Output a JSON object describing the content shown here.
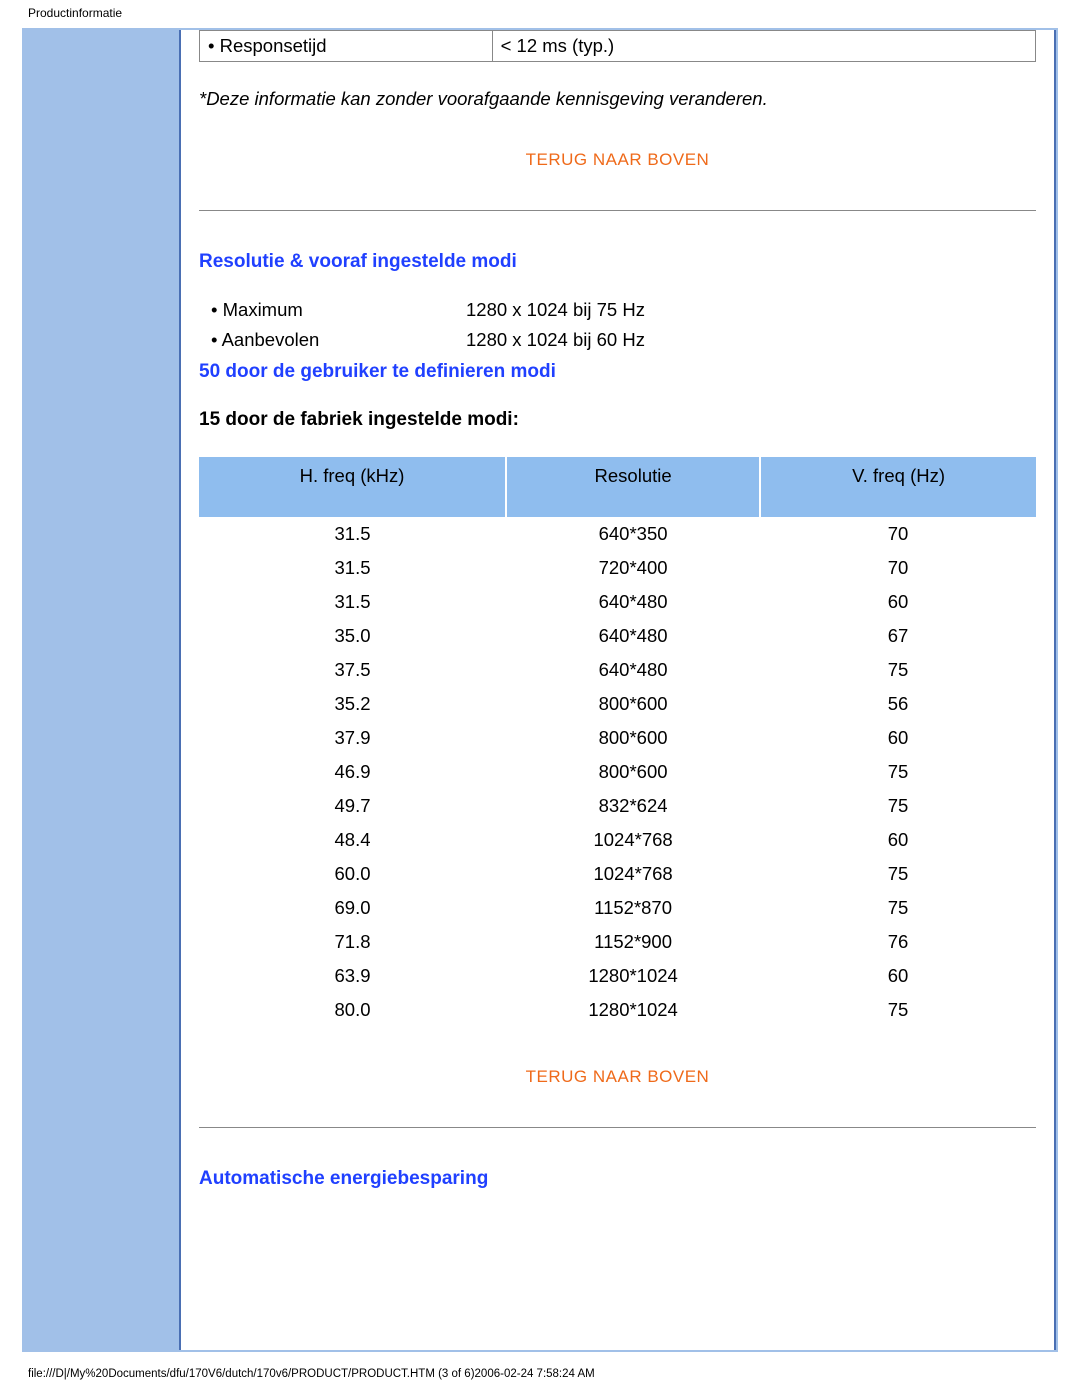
{
  "page_title_header": "Productinformatie",
  "spec_row": {
    "label": "• Responsetijd",
    "value": "< 12 ms (typ.)"
  },
  "disclaimer": "*Deze informatie kan zonder voorafgaande kennisgeving veranderen.",
  "back_to_top": "TERUG NAAR BOVEN",
  "resolution": {
    "heading": "Resolutie & vooraf ingestelde modi",
    "rows": [
      {
        "label": "• Maximum",
        "value": "1280 x 1024 bij 75 Hz"
      },
      {
        "label": "• Aanbevolen",
        "value": "1280 x 1024 bij 60 Hz"
      }
    ],
    "user_modes": "50 door de gebruiker te definieren modi",
    "factory_modes": "15 door de fabriek ingestelde modi:"
  },
  "modes_table": {
    "columns": [
      "H. freq (kHz)",
      "Resolutie",
      "V. freq (Hz)"
    ],
    "rows": [
      [
        "31.5",
        "640*350",
        "70"
      ],
      [
        "31.5",
        "720*400",
        "70"
      ],
      [
        "31.5",
        "640*480",
        "60"
      ],
      [
        "35.0",
        "640*480",
        "67"
      ],
      [
        "37.5",
        "640*480",
        "75"
      ],
      [
        "35.2",
        "800*600",
        "56"
      ],
      [
        "37.9",
        "800*600",
        "60"
      ],
      [
        "46.9",
        "800*600",
        "75"
      ],
      [
        "49.7",
        "832*624",
        "75"
      ],
      [
        "48.4",
        "1024*768",
        "60"
      ],
      [
        "60.0",
        "1024*768",
        "75"
      ],
      [
        "69.0",
        "1152*870",
        "75"
      ],
      [
        "71.8",
        "1152*900",
        "76"
      ],
      [
        "63.9",
        "1280*1024",
        "60"
      ],
      [
        "80.0",
        "1280*1024",
        "75"
      ]
    ]
  },
  "auto_energy_heading": "Automatische energiebesparing",
  "footer_path": "file:///D|/My%20Documents/dfu/170V6/dutch/170v6/PRODUCT/PRODUCT.HTM (3 of 6)2006-02-24 7:58:24 AM",
  "colors": {
    "outer_bg": "#a1c0e8",
    "frame_border": "#4a6fb3",
    "link_orange": "#ef6a1a",
    "heading_blue": "#2040ff",
    "table_header_bg": "#8fbdee"
  }
}
